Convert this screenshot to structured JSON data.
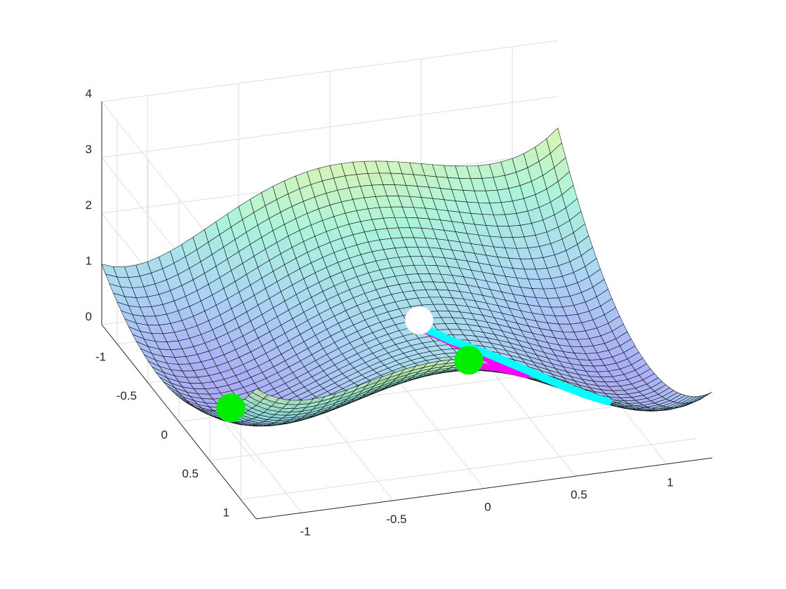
{
  "chart_data": {
    "type": "surface",
    "title": "",
    "xlabel": "",
    "ylabel": "",
    "zlabel": "",
    "xlim": [
      -1.25,
      1.25
    ],
    "ylim": [
      -1.25,
      1.25
    ],
    "zlim": [
      0,
      4
    ],
    "x_ticks": [
      {
        "value": -1,
        "label": "-1"
      },
      {
        "value": -0.5,
        "label": "-0.5"
      },
      {
        "value": 0,
        "label": "0"
      },
      {
        "value": 0.5,
        "label": "0.5"
      },
      {
        "value": 1,
        "label": "1"
      }
    ],
    "y_ticks": [
      {
        "value": -1,
        "label": "-1"
      },
      {
        "value": -0.5,
        "label": "-0.5"
      },
      {
        "value": 0,
        "label": "0"
      },
      {
        "value": 0.5,
        "label": "0.5"
      },
      {
        "value": 1,
        "label": "1"
      }
    ],
    "z_ticks": [
      {
        "value": 0,
        "label": "0"
      },
      {
        "value": 1,
        "label": "1"
      },
      {
        "value": 2,
        "label": "2"
      },
      {
        "value": 3,
        "label": "3"
      },
      {
        "value": 4,
        "label": "4"
      }
    ],
    "grid": true,
    "surface": {
      "function": "double-well: z = (x^2 - 1)^2 + 0.6*y^2 - small saddle ridge",
      "grid_points": 41,
      "colormap": [
        "#8f8ff0",
        "#8fc8f0",
        "#8ff0d0",
        "#d0f09a",
        "#f0d08f"
      ],
      "face_alpha": 0.75
    },
    "markers": [
      {
        "name": "minimum-left",
        "x": -1,
        "y": 0.1,
        "z": 0,
        "color": "#00ee00"
      },
      {
        "name": "minimum-right",
        "x": 0,
        "y": 1,
        "z": 0,
        "color": "#00ee00"
      },
      {
        "name": "start-point",
        "x": 0.1,
        "y": -0.1,
        "z": 0.25,
        "color": "#ffffff"
      }
    ],
    "paths": [
      {
        "name": "path-cyan",
        "color": "#00ffff",
        "width": 11,
        "points": [
          [
            0.1,
            -0.1,
            0.25
          ],
          [
            0.2,
            0.1,
            0.2
          ],
          [
            0.35,
            0.3,
            0.15
          ],
          [
            0.5,
            0.5,
            0.12
          ],
          [
            0.62,
            0.7,
            0.1
          ],
          [
            0.7,
            0.85,
            0.12
          ],
          [
            0.78,
            0.95,
            0.15
          ]
        ]
      },
      {
        "name": "path-magenta",
        "color": "#ff00ff",
        "width": 9,
        "points": [
          [
            0.1,
            -0.07,
            0.2
          ],
          [
            0.2,
            0.15,
            0.15
          ],
          [
            0.3,
            0.4,
            0.1
          ],
          [
            0.35,
            0.6,
            0.08
          ],
          [
            0.38,
            0.8,
            0.06
          ],
          [
            0.35,
            0.92,
            0.04
          ],
          [
            0.15,
            0.98,
            0.02
          ],
          [
            0.0,
            1.0,
            0.0
          ]
        ]
      }
    ]
  }
}
